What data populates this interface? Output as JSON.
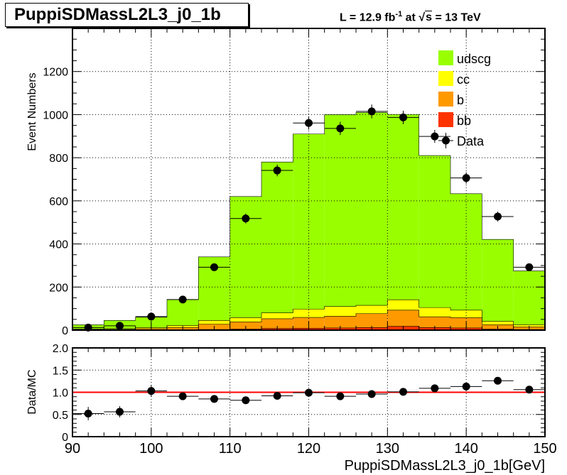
{
  "title": "PuppiSDMassL2L3_j0_1b",
  "lumi": {
    "prefix": "L = 12.9 fb",
    "exponent": "-1",
    "at": " at  ",
    "sqrt": "√",
    "s": "s",
    "energy": " = 13 TeV"
  },
  "chart_data": [
    {
      "type": "bar",
      "panel": "main",
      "ylabel": "Event Numbers",
      "xlim": [
        90,
        150
      ],
      "ylim": [
        0,
        1400
      ],
      "grid": true,
      "legend_position": "top-right",
      "bin_edges": [
        90,
        94,
        98,
        102,
        106,
        110,
        114,
        118,
        122,
        126,
        130,
        134,
        138,
        142,
        146,
        150
      ],
      "stacked": true,
      "series": [
        {
          "name": "bb",
          "color": "#ff3300",
          "values": [
            0,
            0,
            1,
            2,
            3,
            5,
            8,
            9,
            10,
            12,
            18,
            12,
            10,
            5,
            3
          ]
        },
        {
          "name": "b",
          "color": "#ff9900",
          "values": [
            3,
            4,
            6,
            10,
            25,
            33,
            45,
            50,
            55,
            65,
            75,
            50,
            48,
            20,
            12
          ]
        },
        {
          "name": "cc",
          "color": "#ffff00",
          "values": [
            2,
            3,
            5,
            10,
            17,
            20,
            27,
            39,
            45,
            38,
            48,
            43,
            35,
            16,
            10
          ]
        },
        {
          "name": "udscg",
          "color": "#99ff00",
          "values": [
            20,
            38,
            48,
            120,
            295,
            562,
            700,
            812,
            890,
            895,
            860,
            705,
            540,
            380,
            250
          ]
        }
      ],
      "data": {
        "name": "Data",
        "x": [
          92,
          96,
          100,
          104,
          108,
          112,
          116,
          120,
          124,
          128,
          132,
          136,
          140,
          144,
          148
        ],
        "y": [
          12,
          20,
          63,
          142,
          292,
          518,
          741,
          961,
          936,
          1015,
          987,
          899,
          706,
          527,
          292
        ]
      },
      "legend": [
        "udscg",
        "cc",
        "b",
        "bb",
        "Data"
      ],
      "yticks": [
        0,
        200,
        400,
        600,
        800,
        1000,
        1200
      ]
    },
    {
      "type": "scatter",
      "panel": "ratio",
      "ylabel": "Data/MC",
      "xlabel": "PuppiSDMassL2L3_j0_1b[GeV]",
      "xlim": [
        90,
        150
      ],
      "ylim": [
        0,
        2
      ],
      "grid": true,
      "reference_line": 1.0,
      "reference_color": "#ff0000",
      "x": [
        92,
        96,
        100,
        104,
        108,
        112,
        116,
        120,
        124,
        128,
        132,
        136,
        140,
        144,
        148
      ],
      "y": [
        0.52,
        0.56,
        1.03,
        0.91,
        0.85,
        0.82,
        0.92,
        0.99,
        0.91,
        0.96,
        1.01,
        1.09,
        1.13,
        1.26,
        1.06
      ],
      "yticks": [
        0.0,
        0.5,
        1.0,
        1.5,
        2.0
      ],
      "yticklabels": [
        "0",
        "0.5",
        "1.0",
        "1.5",
        "2.0"
      ],
      "xticks": [
        90,
        100,
        110,
        120,
        130,
        140,
        150
      ]
    }
  ]
}
